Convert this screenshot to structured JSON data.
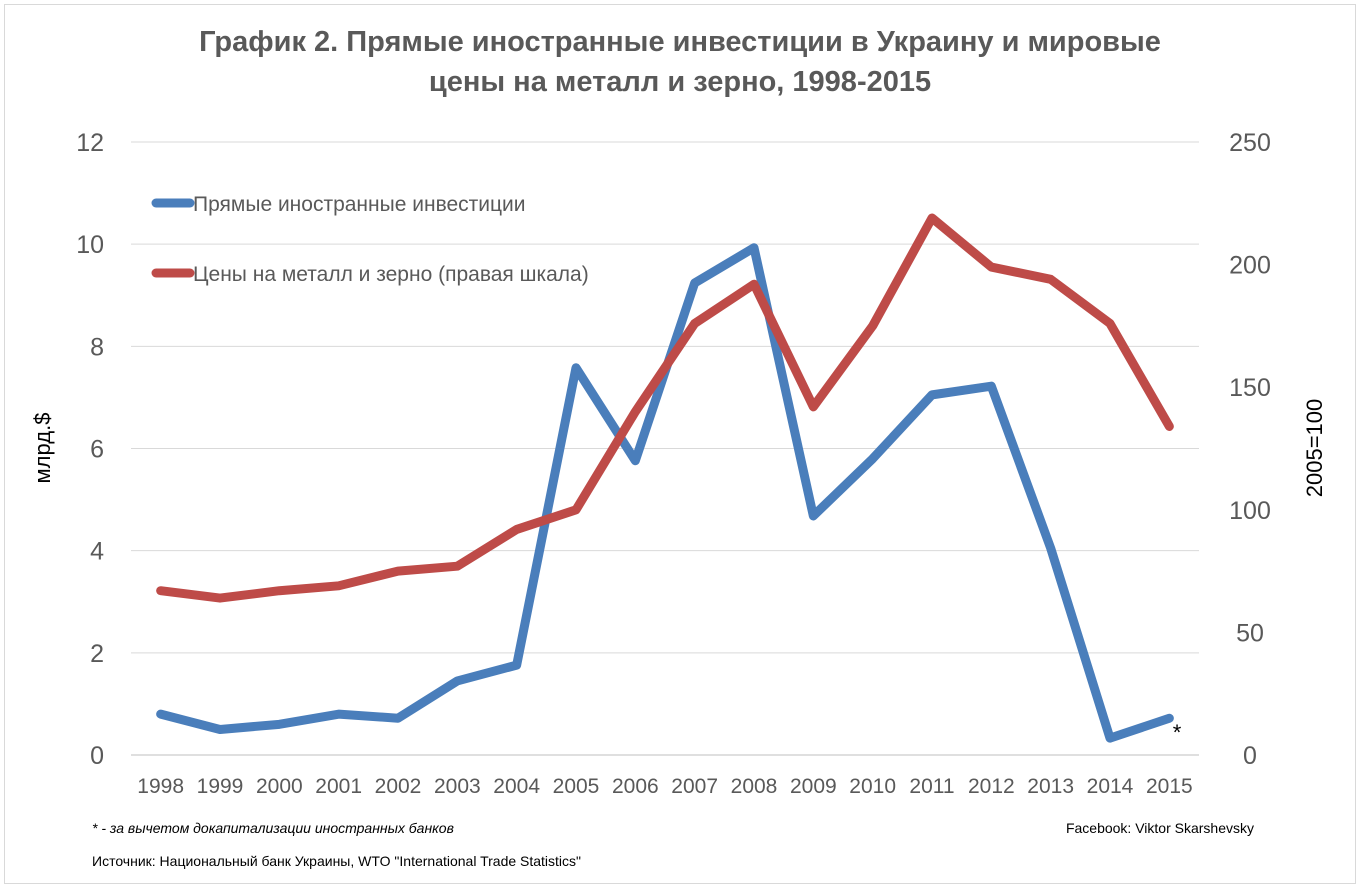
{
  "chart_data": {
    "type": "line",
    "title_line1": "График 2. Прямые иностранные инвестиции в Украину и мировые",
    "title_line2": "цены на металл и зерно, 1998-2015",
    "ylabel": "млрд.$",
    "y2label": "2005=100",
    "ylim": [
      0,
      12
    ],
    "y2lim": [
      0,
      250
    ],
    "yticks": [
      "0",
      "2",
      "4",
      "6",
      "8",
      "10",
      "12"
    ],
    "y2ticks": [
      "0",
      "50",
      "100",
      "150",
      "200",
      "250"
    ],
    "x": [
      "1998",
      "1999",
      "2000",
      "2001",
      "2002",
      "2003",
      "2004",
      "2005",
      "2006",
      "2007",
      "2008",
      "2009",
      "2010",
      "2011",
      "2012",
      "2013",
      "2014",
      "2015"
    ],
    "grid": true,
    "legend_position": "top-left",
    "series": [
      {
        "name": "Прямые иностранные инвестиции",
        "axis": "left",
        "color": "#4a7ebb",
        "values": [
          0.8,
          0.5,
          0.6,
          0.8,
          0.72,
          1.45,
          1.76,
          7.58,
          5.76,
          9.24,
          9.93,
          4.68,
          5.8,
          7.05,
          7.22,
          4.05,
          0.33,
          0.72
        ]
      },
      {
        "name": "Цены на металл и зерно (правая шкала)",
        "axis": "right",
        "color": "#be4b48",
        "values": [
          67,
          64,
          67,
          69,
          75,
          77,
          92,
          100,
          140,
          176,
          192,
          142,
          175,
          219,
          199,
          194,
          176,
          134
        ]
      }
    ],
    "annotation": "*"
  },
  "footnote": "* - за вычетом докапитализации иностранных банков",
  "credit": "Facebook: Viktor Skarshevsky",
  "source": "Источник: Национальный банк Украины, WTO \"International Trade Statistics\""
}
